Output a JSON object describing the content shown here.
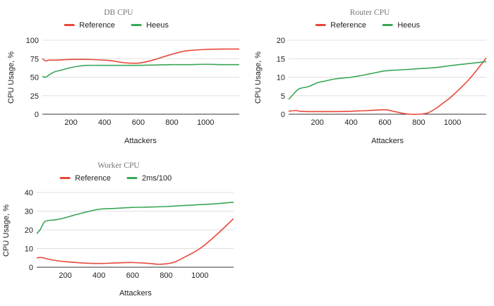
{
  "colors": {
    "red": "#e8473a",
    "green": "#3aa756"
  },
  "chart_data": [
    {
      "type": "line",
      "title": "DB CPU",
      "xlabel": "Attackers",
      "ylabel": "CPU Usage, %",
      "xlim": [
        30,
        1200
      ],
      "ylim": [
        0,
        100
      ],
      "yticks": [
        0,
        25,
        50,
        75,
        100
      ],
      "xticks": [
        200,
        400,
        600,
        800,
        1000
      ],
      "legend": "top-center",
      "grid": true,
      "series": [
        {
          "name": "Reference",
          "color": "#e8473a",
          "x": [
            30,
            50,
            70,
            100,
            150,
            200,
            300,
            400,
            450,
            500,
            550,
            600,
            650,
            700,
            800,
            850,
            900,
            1000,
            1100,
            1200
          ],
          "y": [
            75,
            72,
            73,
            73,
            73.5,
            74,
            74,
            73,
            72,
            70,
            69,
            69,
            71,
            74,
            81,
            84,
            86,
            87.5,
            88,
            88
          ]
        },
        {
          "name": "Heeus",
          "color": "#3aa756",
          "x": [
            30,
            50,
            70,
            100,
            150,
            200,
            250,
            300,
            400,
            500,
            600,
            700,
            800,
            900,
            1000,
            1100,
            1200
          ],
          "y": [
            51,
            50,
            53,
            57,
            60,
            63,
            65,
            66,
            66,
            66,
            66,
            66.5,
            67,
            67,
            67.5,
            67,
            67
          ]
        }
      ]
    },
    {
      "type": "line",
      "title": "Router CPU",
      "xlabel": "Attackers",
      "ylabel": "CPU Usage, %",
      "xlim": [
        30,
        1200
      ],
      "ylim": [
        0,
        20
      ],
      "yticks": [
        0,
        5,
        10,
        15,
        20
      ],
      "xticks": [
        200,
        400,
        600,
        800,
        1000
      ],
      "legend": "top-center",
      "grid": true,
      "series": [
        {
          "name": "Reference",
          "color": "#e8473a",
          "x": [
            30,
            70,
            100,
            150,
            200,
            300,
            400,
            500,
            600,
            650,
            700,
            750,
            800,
            850,
            900,
            950,
            1000,
            1100,
            1200
          ],
          "y": [
            0.8,
            1,
            0.8,
            0.7,
            0.7,
            0.7,
            0.8,
            1,
            1.2,
            0.8,
            0.3,
            0,
            0,
            0.3,
            1.5,
            3.2,
            5,
            9.5,
            15.2
          ]
        },
        {
          "name": "Heeus",
          "color": "#3aa756",
          "x": [
            30,
            60,
            80,
            100,
            150,
            200,
            250,
            300,
            400,
            500,
            600,
            700,
            800,
            900,
            1000,
            1100,
            1200
          ],
          "y": [
            4,
            5.5,
            6.5,
            7,
            7.5,
            8.5,
            9,
            9.5,
            10,
            10.8,
            11.7,
            12,
            12.3,
            12.6,
            13.2,
            13.7,
            14.2
          ]
        }
      ]
    },
    {
      "type": "line",
      "title": "Worker CPU",
      "xlabel": "Attackers",
      "ylabel": "CPU Usage, %",
      "xlim": [
        30,
        1200
      ],
      "ylim": [
        0,
        40
      ],
      "yticks": [
        0,
        10,
        20,
        30,
        40
      ],
      "xticks": [
        200,
        400,
        600,
        800,
        1000
      ],
      "legend": "top-center",
      "grid": true,
      "series": [
        {
          "name": "Reference",
          "color": "#e8473a",
          "x": [
            30,
            50,
            70,
            100,
            150,
            200,
            300,
            400,
            500,
            600,
            700,
            750,
            800,
            850,
            900,
            1000,
            1100,
            1200
          ],
          "y": [
            5,
            5.2,
            5,
            4.3,
            3.5,
            3,
            2.3,
            2,
            2.3,
            2.5,
            2,
            1.6,
            1.8,
            2.8,
            5,
            10,
            17.5,
            26
          ]
        },
        {
          "name": "2ms/100",
          "color": "#3aa756",
          "x": [
            30,
            50,
            70,
            80,
            100,
            150,
            200,
            250,
            300,
            400,
            500,
            600,
            700,
            800,
            900,
            1000,
            1100,
            1200
          ],
          "y": [
            18,
            20,
            23.5,
            24.5,
            25,
            25.5,
            26.5,
            27.8,
            29,
            31,
            31.5,
            32,
            32.2,
            32.5,
            33,
            33.5,
            34,
            34.8
          ]
        }
      ]
    }
  ]
}
